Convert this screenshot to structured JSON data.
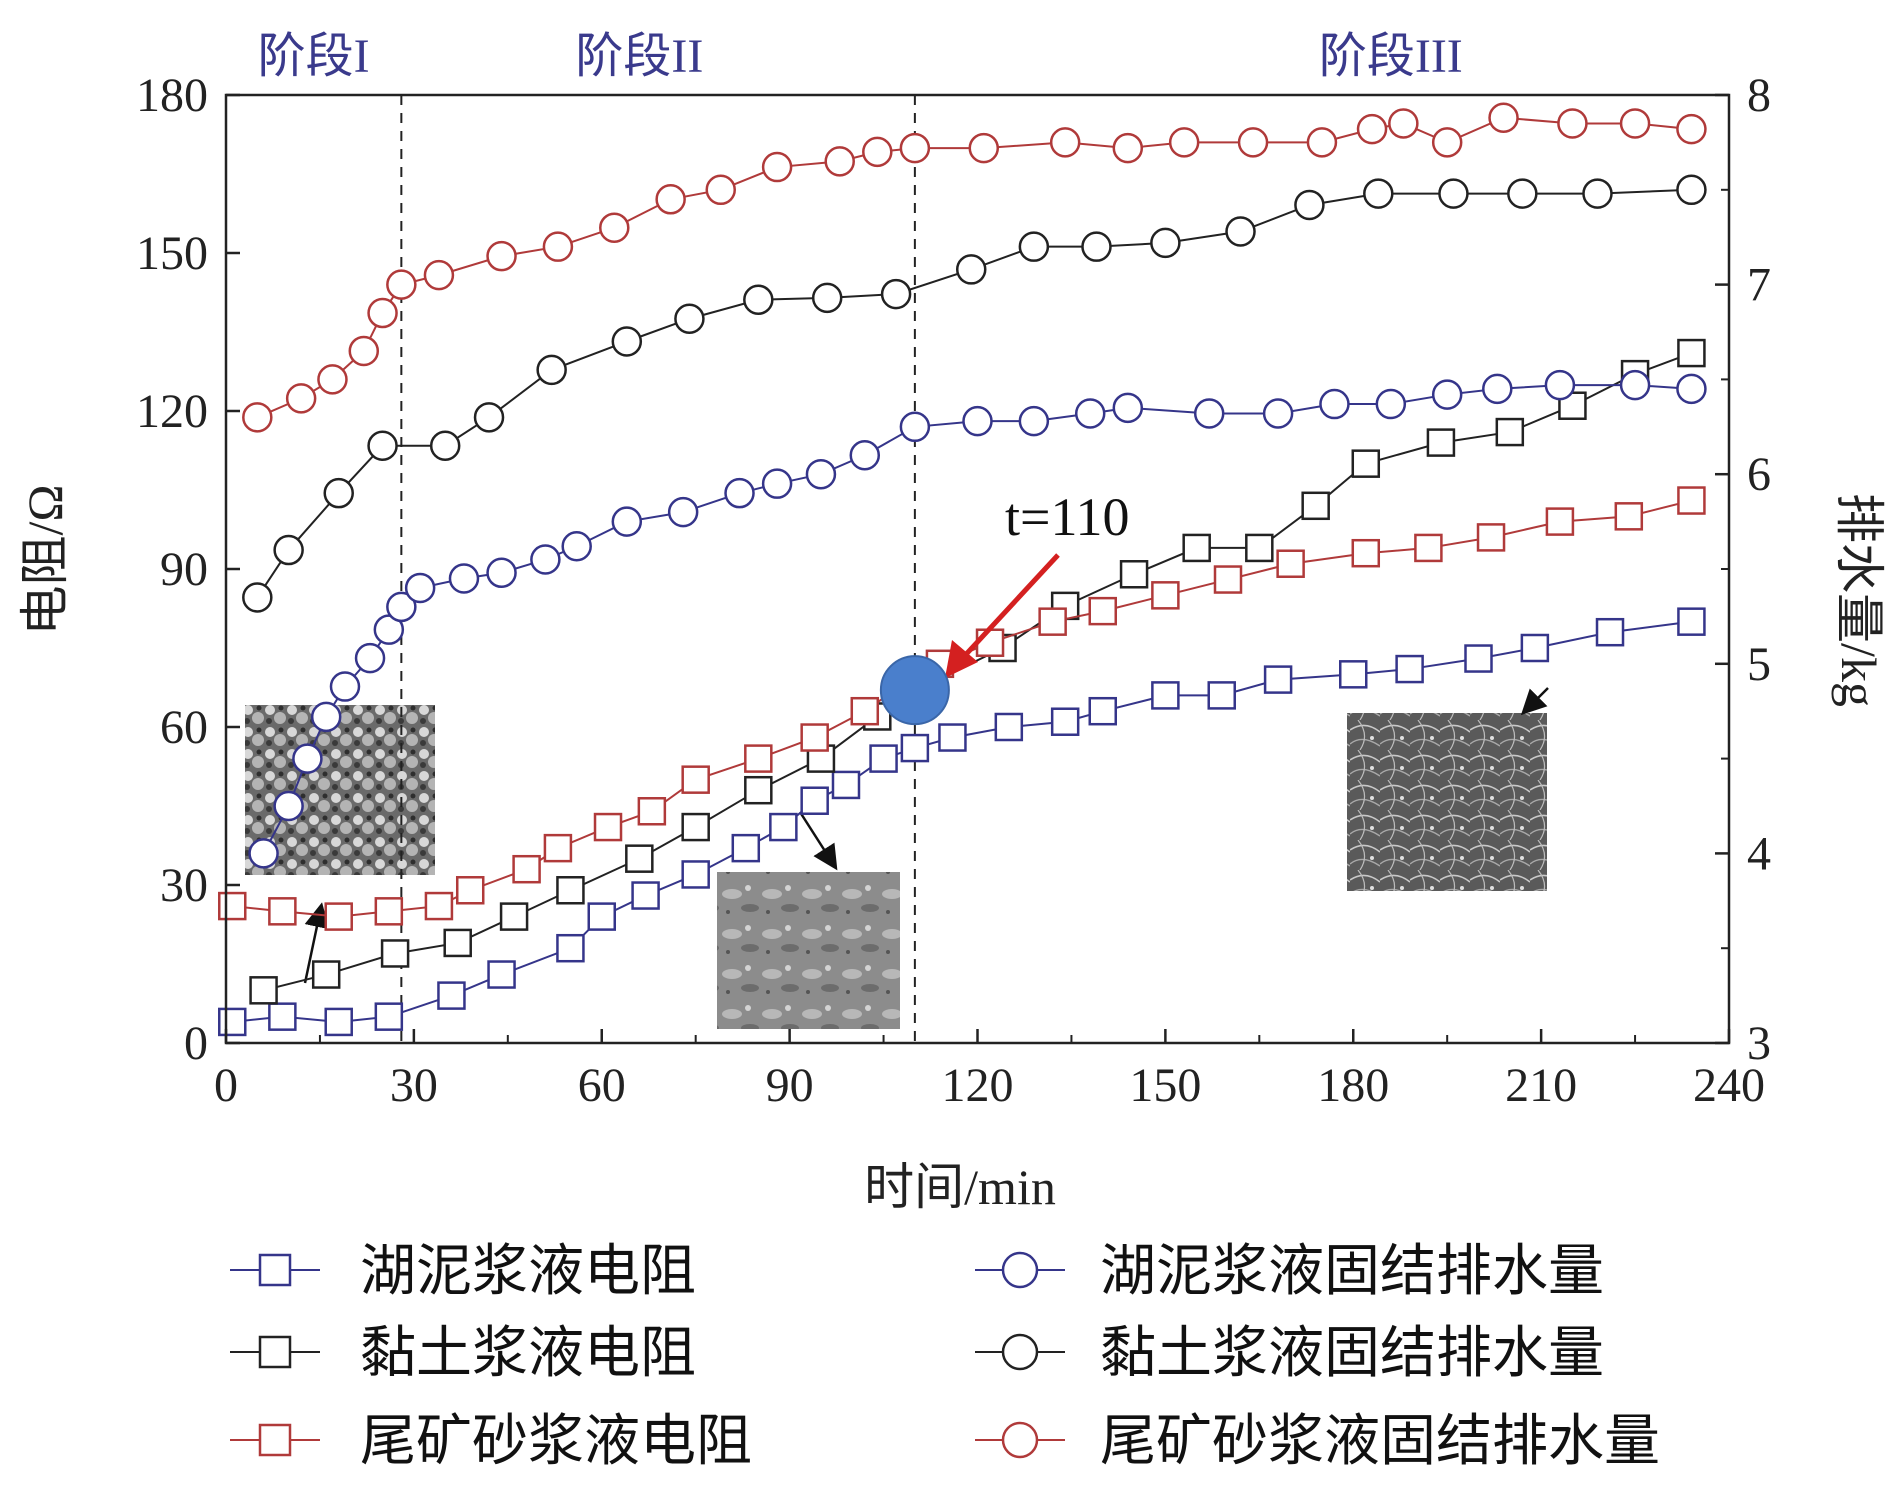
{
  "chart_data": {
    "type": "line",
    "xlabel": "时间/min",
    "ylabel_left": "电阻/Ω",
    "ylabel_right": "排水量/kg",
    "xlim": [
      0,
      240
    ],
    "ylim_left": [
      0,
      180
    ],
    "ylim_right": [
      3,
      8
    ],
    "x_ticks": [
      0,
      30,
      60,
      90,
      120,
      150,
      180,
      210,
      240
    ],
    "y_ticks_left": [
      0,
      30,
      60,
      90,
      120,
      150,
      180
    ],
    "y_ticks_right": [
      3,
      4,
      5,
      6,
      7,
      8
    ],
    "grid": false,
    "legend_position": "bottom",
    "phase_boundaries": [
      28,
      110
    ],
    "phases": [
      {
        "label": "阶段I",
        "x": 14
      },
      {
        "label": "阶段II",
        "x": 66
      },
      {
        "label": "阶段III",
        "x": 186
      }
    ],
    "annotation": {
      "text": "t=110",
      "x": 110,
      "y": 67
    },
    "series": [
      {
        "name": "湖泥浆液电阻",
        "axis": "left",
        "marker": "square",
        "color": "#35358a",
        "x": [
          1,
          9,
          18,
          26,
          36,
          44,
          55,
          60,
          67,
          75,
          83,
          89,
          94,
          99,
          105,
          110,
          116,
          125,
          134,
          140,
          150,
          159,
          168,
          180,
          189,
          200,
          209,
          221,
          234
        ],
        "y": [
          4,
          5,
          4,
          5,
          9,
          13,
          18,
          24,
          28,
          32,
          37,
          41,
          46,
          49,
          54,
          56,
          58,
          60,
          61,
          63,
          66,
          66,
          69,
          70,
          71,
          73,
          75,
          78,
          80
        ]
      },
      {
        "name": "黏土浆液电阻",
        "axis": "left",
        "marker": "square",
        "color": "#222222",
        "x": [
          6,
          16,
          27,
          37,
          46,
          55,
          66,
          75,
          85,
          95,
          104,
          112,
          124,
          134,
          145,
          155,
          165,
          174,
          182,
          194,
          205,
          215,
          225,
          234
        ],
        "y": [
          10,
          13,
          17,
          19,
          24,
          29,
          35,
          41,
          48,
          54,
          62,
          68,
          75,
          83,
          89,
          94,
          94,
          102,
          110,
          114,
          116,
          121,
          127,
          131
        ]
      },
      {
        "name": "尾矿砂浆液电阻",
        "axis": "left",
        "marker": "square",
        "color": "#b03a3a",
        "x": [
          1,
          9,
          18,
          26,
          34,
          39,
          48,
          53,
          61,
          68,
          75,
          85,
          94,
          102,
          108,
          114,
          122,
          132,
          140,
          150,
          160,
          170,
          182,
          192,
          202,
          213,
          224,
          234
        ],
        "y": [
          26,
          25,
          24,
          25,
          26,
          29,
          33,
          37,
          41,
          44,
          50,
          54,
          58,
          63,
          68,
          72,
          76,
          80,
          82,
          85,
          88,
          91,
          93,
          94,
          96,
          99,
          100,
          103
        ]
      },
      {
        "name": "湖泥浆液固结排水量",
        "axis": "right",
        "marker": "circle",
        "color": "#35358a",
        "x": [
          6,
          10,
          13,
          16,
          19,
          23,
          26,
          28,
          31,
          38,
          44,
          51,
          56,
          64,
          73,
          82,
          88,
          95,
          102,
          110,
          120,
          129,
          138,
          144,
          157,
          168,
          177,
          186,
          195,
          203,
          213,
          225,
          234
        ],
        "y": [
          4.0,
          4.25,
          4.5,
          4.72,
          4.88,
          5.03,
          5.18,
          5.3,
          5.4,
          5.45,
          5.48,
          5.55,
          5.62,
          5.75,
          5.8,
          5.9,
          5.95,
          6.0,
          6.1,
          6.25,
          6.28,
          6.28,
          6.32,
          6.35,
          6.32,
          6.32,
          6.37,
          6.37,
          6.42,
          6.45,
          6.47,
          6.47,
          6.45
        ]
      },
      {
        "name": "黏土浆液固结排水量",
        "axis": "right",
        "marker": "circle",
        "color": "#222222",
        "x": [
          5,
          10,
          18,
          25,
          35,
          42,
          52,
          64,
          74,
          85,
          96,
          107,
          119,
          129,
          139,
          150,
          162,
          173,
          184,
          196,
          207,
          219,
          234
        ],
        "y": [
          5.35,
          5.6,
          5.9,
          6.15,
          6.15,
          6.3,
          6.55,
          6.7,
          6.82,
          6.92,
          6.93,
          6.95,
          7.08,
          7.2,
          7.2,
          7.22,
          7.28,
          7.42,
          7.48,
          7.48,
          7.48,
          7.48,
          7.5
        ]
      },
      {
        "name": "尾矿砂浆液固结排水量",
        "axis": "right",
        "marker": "circle",
        "color": "#b03a3a",
        "x": [
          5,
          12,
          17,
          22,
          25,
          28,
          34,
          44,
          53,
          62,
          71,
          79,
          88,
          98,
          104,
          110,
          121,
          134,
          144,
          153,
          164,
          175,
          183,
          188,
          195,
          204,
          215,
          225,
          234
        ],
        "y": [
          6.3,
          6.4,
          6.5,
          6.65,
          6.85,
          7.0,
          7.05,
          7.15,
          7.2,
          7.3,
          7.45,
          7.5,
          7.62,
          7.65,
          7.7,
          7.72,
          7.72,
          7.75,
          7.72,
          7.75,
          7.75,
          7.75,
          7.82,
          7.85,
          7.75,
          7.88,
          7.85,
          7.85,
          7.82
        ]
      }
    ]
  },
  "legend": [
    {
      "label": "湖泥浆液电阻",
      "marker": "square",
      "color": "#35358a"
    },
    {
      "label": "黏土浆液电阻",
      "marker": "square",
      "color": "#222222"
    },
    {
      "label": "尾矿砂浆液电阻",
      "marker": "square",
      "color": "#b03a3a"
    },
    {
      "label": "湖泥浆液固结排水量",
      "marker": "circle",
      "color": "#35358a"
    },
    {
      "label": "黏土浆液固结排水量",
      "marker": "circle",
      "color": "#222222"
    },
    {
      "label": "尾矿砂浆液固结排水量",
      "marker": "circle",
      "color": "#b03a3a"
    }
  ]
}
